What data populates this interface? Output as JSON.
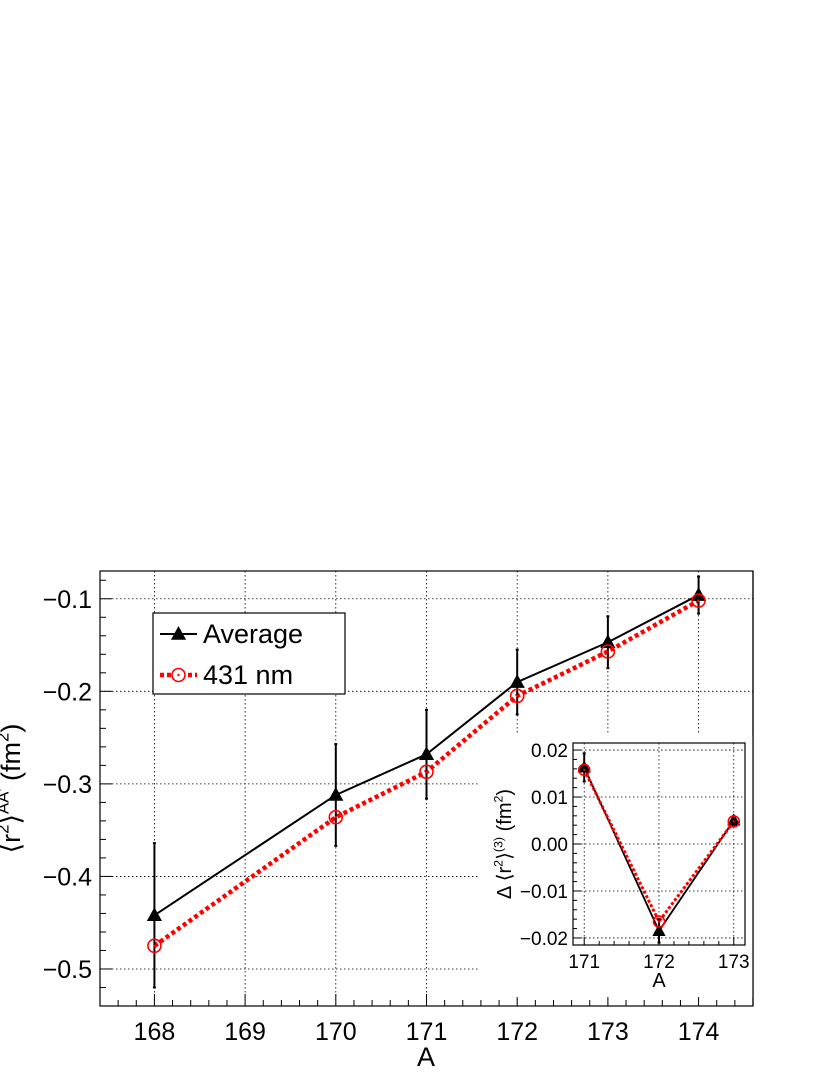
{
  "chart_data": [
    {
      "type": "line",
      "xlabel": "A",
      "ylabel": "⟨r²⟩^AA' (fm²)",
      "ylabel_parts": {
        "open": "⟨r",
        "sup1": "2",
        "close": "⟩",
        "sup2": "AA'",
        "unit_open": " (fm",
        "unit_sup": "2",
        "unit_close": ")"
      },
      "xlim": [
        167.4,
        174.6
      ],
      "ylim": [
        -0.54,
        -0.07
      ],
      "x_ticks": [
        168,
        169,
        170,
        171,
        172,
        173,
        174
      ],
      "x_tick_labels": [
        "168",
        "169",
        "170",
        "171",
        "172",
        "173",
        "174"
      ],
      "y_ticks": [
        -0.5,
        -0.4,
        -0.3,
        -0.2,
        -0.1
      ],
      "y_tick_labels": [
        "−0.5",
        "−0.4",
        "−0.3",
        "−0.2",
        "−0.1"
      ],
      "grid": true,
      "legend_position": "top-left",
      "series": [
        {
          "name": "Average",
          "color": "#000000",
          "marker": "filled-triangle",
          "x": [
            168,
            170,
            171,
            172,
            173,
            174
          ],
          "y": [
            -0.442,
            -0.312,
            -0.268,
            -0.19,
            -0.147,
            -0.096
          ],
          "yerr": [
            0.078,
            0.055,
            0.048,
            0.035,
            0.028,
            0.02
          ]
        },
        {
          "name": "431 nm",
          "color": "#ff0000",
          "marker": "open-circle",
          "x": [
            168,
            170,
            171,
            172,
            173,
            174
          ],
          "y": [
            -0.475,
            -0.336,
            -0.287,
            -0.205,
            -0.157,
            -0.102
          ],
          "yerr": [
            0,
            0,
            0,
            0,
            0,
            0
          ]
        }
      ]
    },
    {
      "type": "line",
      "inset": true,
      "xlabel": "A",
      "ylabel": "Δ ⟨r²⟩^(3) (fm²)",
      "ylabel_parts": {
        "open": "Δ ⟨r",
        "sup1": "2",
        "close": "⟩",
        "sup2": "(3)",
        "unit_open": " (fm",
        "unit_sup": "2",
        "unit_close": ")"
      },
      "xlim": [
        170.85,
        173.15
      ],
      "ylim": [
        -0.0215,
        0.0215
      ],
      "x_ticks": [
        171,
        172,
        173
      ],
      "x_tick_labels": [
        "171",
        "172",
        "173"
      ],
      "y_ticks": [
        -0.02,
        -0.01,
        0.0,
        0.01,
        0.02
      ],
      "y_tick_labels": [
        "−0.02",
        "−0.01",
        "0.00",
        "0.01",
        "0.02"
      ],
      "grid": true,
      "series": [
        {
          "name": "Average",
          "color": "#000000",
          "marker": "filled-triangle",
          "x": [
            171,
            172,
            173
          ],
          "y": [
            0.0163,
            -0.0185,
            0.005
          ],
          "yerr": [
            0.003,
            0.0025,
            0.001
          ]
        },
        {
          "name": "431 nm",
          "color": "#ff0000",
          "marker": "open-circle",
          "x": [
            171,
            172,
            173
          ],
          "y": [
            0.0158,
            -0.0165,
            0.0048
          ],
          "yerr": [
            0,
            0,
            0
          ]
        }
      ]
    }
  ]
}
